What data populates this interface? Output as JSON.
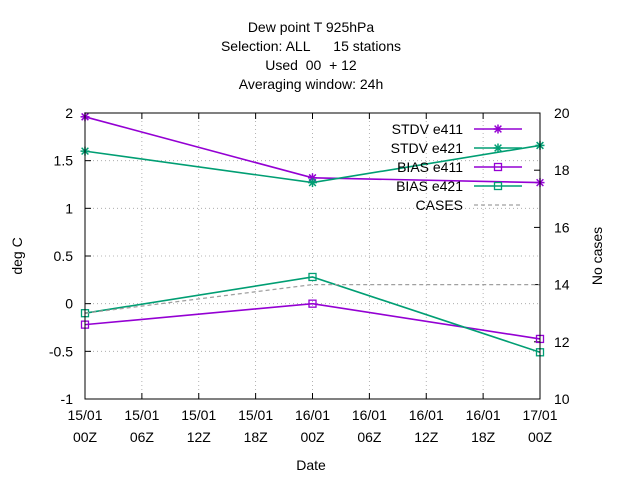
{
  "chart_data": {
    "type": "line",
    "title_lines": [
      "Dew point T 925hPa",
      "Selection: ALL      15 stations",
      "Used  00  + 12",
      "Averaging window: 24h"
    ],
    "xlabel": "Date",
    "ylabel": "deg C",
    "y2label": "No cases",
    "x_ticks": [
      {
        "line1": "15/01",
        "line2": "00Z"
      },
      {
        "line1": "15/01",
        "line2": "06Z"
      },
      {
        "line1": "15/01",
        "line2": "12Z"
      },
      {
        "line1": "15/01",
        "line2": "18Z"
      },
      {
        "line1": "16/01",
        "line2": "00Z"
      },
      {
        "line1": "16/01",
        "line2": "06Z"
      },
      {
        "line1": "16/01",
        "line2": "12Z"
      },
      {
        "line1": "16/01",
        "line2": "18Z"
      },
      {
        "line1": "17/01",
        "line2": "00Z"
      }
    ],
    "x_hours": [
      0,
      6,
      12,
      18,
      24,
      30,
      36,
      42,
      48
    ],
    "ylim": [
      -1,
      2
    ],
    "y_ticks": [
      -1,
      -0.5,
      0,
      0.5,
      1,
      1.5,
      2
    ],
    "y_tick_labels": [
      "-1",
      "-0.5",
      "0",
      "0.5",
      "1",
      "1.5",
      "2"
    ],
    "y2lim": [
      10,
      20
    ],
    "y2_ticks": [
      10,
      12,
      14,
      16,
      18,
      20
    ],
    "y2_tick_labels": [
      "10",
      "12",
      "14",
      "16",
      "18",
      "20"
    ],
    "grid": true,
    "legend_position": "top-right",
    "series": [
      {
        "name": "STDV e411",
        "axis": "y",
        "color": "#9400d3",
        "marker": "star",
        "x": [
          0,
          24,
          48
        ],
        "values": [
          1.96,
          1.32,
          1.27
        ]
      },
      {
        "name": "STDV e421",
        "axis": "y",
        "color": "#009e73",
        "marker": "star",
        "x": [
          0,
          24,
          48
        ],
        "values": [
          1.6,
          1.27,
          1.66
        ]
      },
      {
        "name": "BIAS e411",
        "axis": "y",
        "color": "#9400d3",
        "marker": "square",
        "x": [
          0,
          24,
          48
        ],
        "values": [
          -0.22,
          0.0,
          -0.37
        ]
      },
      {
        "name": "BIAS e421",
        "axis": "y",
        "color": "#009e73",
        "marker": "square",
        "x": [
          0,
          24,
          48
        ],
        "values": [
          -0.1,
          0.28,
          -0.51
        ]
      },
      {
        "name": "CASES",
        "axis": "y2",
        "color": "#a0a0a0",
        "marker": "none",
        "dashed": true,
        "x": [
          0,
          24,
          48
        ],
        "values": [
          13,
          14,
          14
        ]
      }
    ]
  }
}
